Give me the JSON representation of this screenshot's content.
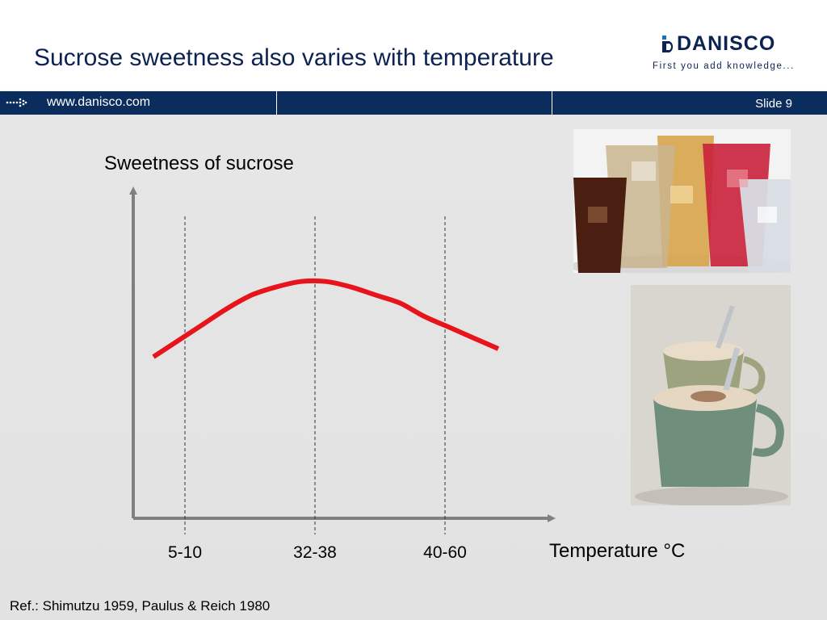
{
  "slide": {
    "title": "Sucrose sweetness also varies with temperature",
    "reference": "Ref.: Shimutzu 1959, Paulus & Reich 1980"
  },
  "logo": {
    "name": "DANISCO",
    "tagline": "First you add knowledge..."
  },
  "navbar": {
    "url": "www.danisco.com",
    "slide_label": "Slide 9"
  },
  "colors": {
    "brand_navy": "#0b2d5e",
    "title_navy": "#0b2253",
    "curve_red": "#e8141b",
    "axis_gray": "#808080",
    "background_gray": "#e4e4e4"
  },
  "chart_data": {
    "type": "line",
    "title": "Sweetness of sucrose",
    "xlabel": "Temperature °C",
    "ylabel": "",
    "categories": [
      "5-10",
      "32-38",
      "40-60"
    ],
    "x": [
      0,
      5,
      10,
      15,
      20,
      25,
      30,
      35,
      40,
      45,
      50,
      55,
      60,
      65,
      70
    ],
    "y": [
      60,
      66,
      72,
      78,
      83,
      86,
      88,
      88,
      86,
      83,
      80,
      75,
      71,
      67,
      63
    ],
    "series": [
      {
        "values": [
          60,
          66,
          72,
          78,
          83,
          86,
          88,
          88,
          86,
          83,
          80,
          75,
          71,
          67,
          63
        ]
      }
    ],
    "ylim": [
      0,
      120
    ],
    "grid": false,
    "legend": "none"
  },
  "images": {
    "drinks": "glasses-of-cold-drinks-with-ice",
    "hot_drinks": "mugs-of-hot-cappuccino-with-spoons"
  }
}
